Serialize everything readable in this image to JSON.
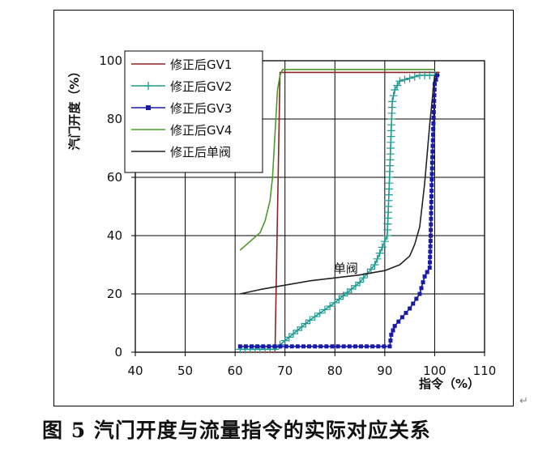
{
  "figure": {
    "caption": "图 5  汽门开度与流量指令的实际对应关系",
    "return_mark": "↵"
  },
  "chart_data": {
    "type": "line",
    "title": "",
    "xlabel": "指令（%）",
    "ylabel": "汽门开度（%）",
    "xlim": [
      40,
      110
    ],
    "ylim": [
      0,
      100
    ],
    "xticks": [
      40,
      50,
      60,
      70,
      80,
      90,
      100,
      110
    ],
    "yticks": [
      0,
      20,
      40,
      60,
      80,
      100
    ],
    "grid": true,
    "legend_position": "top-left",
    "annotations": [
      {
        "text": "单阀",
        "x": 84,
        "y": 29
      }
    ],
    "series": [
      {
        "name": "修正后GV1",
        "color": "#8b2323",
        "marker": "none",
        "x": [
          61,
          68,
          69,
          69.5,
          70,
          101
        ],
        "y": [
          0,
          0,
          96,
          96,
          96,
          96
        ]
      },
      {
        "name": "修正后GV2",
        "color": "#1e9b92",
        "marker": "plus",
        "x": [
          61,
          65,
          68,
          70,
          75,
          80,
          85,
          88,
          89.5,
          90.5,
          91,
          91.5,
          92,
          93,
          95,
          97,
          99,
          100,
          101
        ],
        "y": [
          1,
          1,
          1,
          4,
          11,
          17,
          24,
          30,
          36,
          40,
          62,
          86,
          90,
          93,
          94,
          95,
          95,
          95,
          95
        ]
      },
      {
        "name": "修正后GV3",
        "color": "#1a1aa8",
        "marker": "square",
        "x": [
          61,
          91,
          91.3,
          92,
          95,
          97,
          98,
          99,
          99.2,
          99.5,
          100,
          100.5,
          101
        ],
        "y": [
          2,
          2,
          6,
          9,
          15,
          20,
          26,
          29,
          40,
          65,
          92,
          95,
          95
        ]
      },
      {
        "name": "修正后GV4",
        "color": "#4c9a2a",
        "marker": "none",
        "x": [
          61,
          63,
          65,
          66,
          67,
          67.5,
          68,
          68.5,
          69,
          69.5,
          100
        ],
        "y": [
          35,
          38,
          41,
          45,
          52,
          60,
          75,
          90,
          95,
          97,
          97
        ]
      },
      {
        "name": "修正后单阀",
        "color": "#222222",
        "marker": "none",
        "x": [
          61,
          65,
          70,
          75,
          80,
          85,
          90,
          93,
          95,
          96,
          97,
          98,
          99,
          100
        ],
        "y": [
          20,
          21.5,
          23,
          24.5,
          25.5,
          26.5,
          28,
          30,
          33,
          37,
          43,
          58,
          78,
          95
        ]
      }
    ]
  }
}
